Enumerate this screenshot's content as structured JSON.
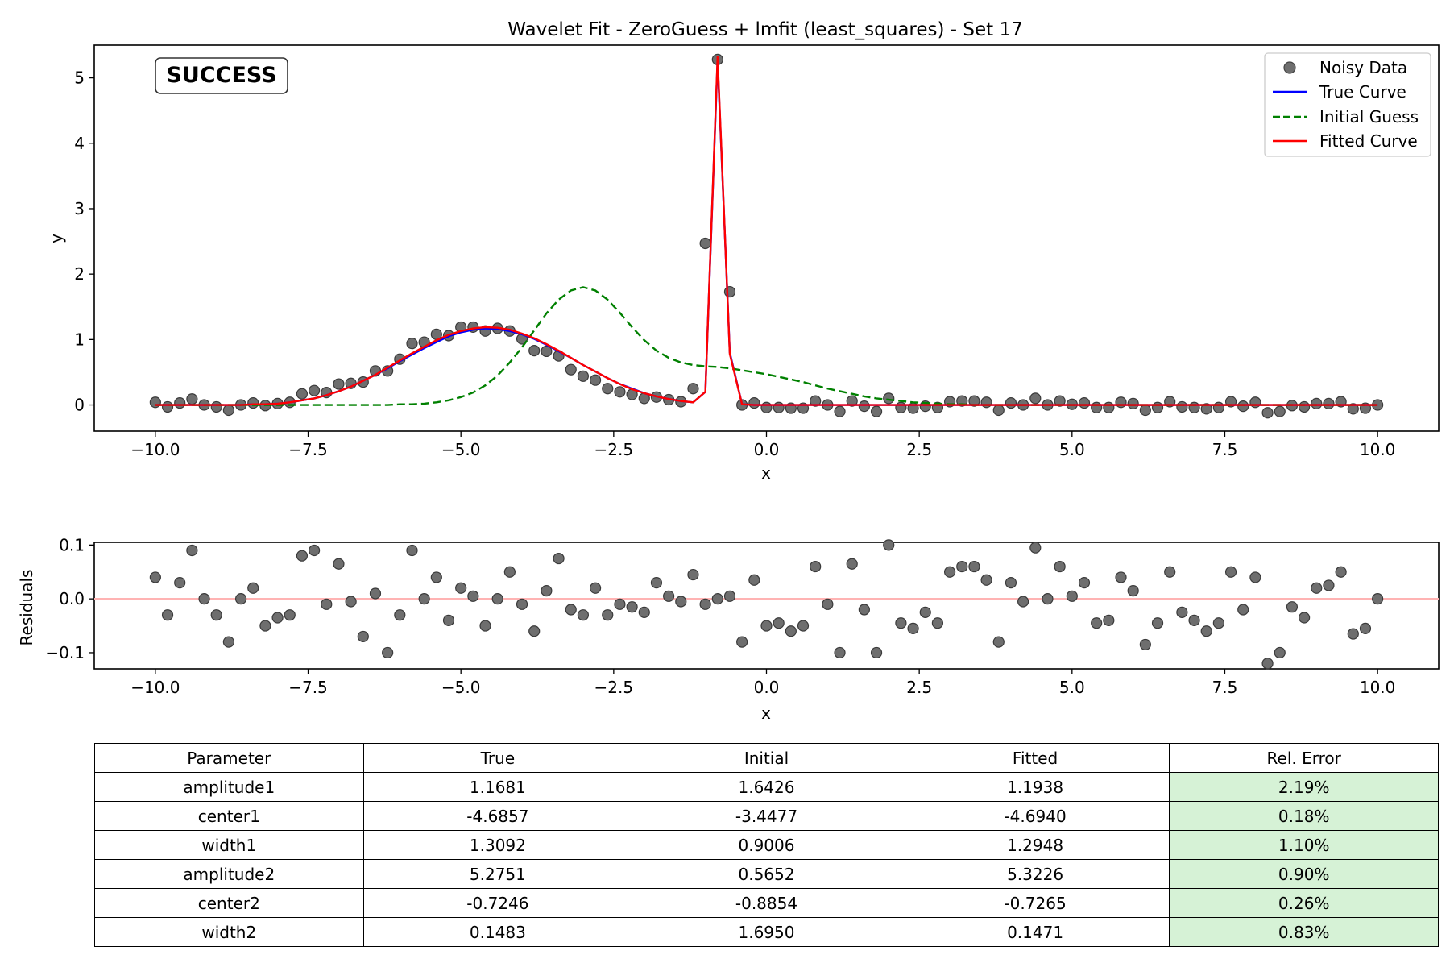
{
  "colors": {
    "data_point": "#6e6e6e",
    "true_curve": "#0000ff",
    "initial_guess": "#008000",
    "fitted_curve": "#ff0000",
    "residual_zero_line": "#ffb3b3",
    "success": "#008000",
    "good_error_cell": "#d6f2d6"
  },
  "status_badge": "SUCCESS",
  "chart_data": [
    {
      "type": "scatter",
      "title": "Wavelet Fit - ZeroGuess + lmfit (least_squares) - Set 17",
      "xlabel": "x",
      "ylabel": "y",
      "xlim": [
        -11,
        11
      ],
      "ylim": [
        -0.4,
        5.5
      ],
      "xticks": [
        -10,
        -7.5,
        -5,
        -2.5,
        0,
        2.5,
        5,
        7.5,
        10
      ],
      "xtick_labels": [
        "−10.0",
        "−7.5",
        "−5.0",
        "−2.5",
        "0.0",
        "2.5",
        "5.0",
        "7.5",
        "10.0"
      ],
      "yticks": [
        0,
        1,
        2,
        3,
        4,
        5
      ],
      "ytick_labels": [
        "0",
        "1",
        "2",
        "3",
        "4",
        "5"
      ],
      "legend_position": "top-right",
      "legend": [
        "Noisy Data",
        "True Curve",
        "Initial Guess",
        "Fitted Curve"
      ],
      "x": [
        -10.0,
        -9.8,
        -9.6,
        -9.4,
        -9.2,
        -9.0,
        -8.8,
        -8.6,
        -8.4,
        -8.2,
        -8.0,
        -7.8,
        -7.6,
        -7.4,
        -7.2,
        -7.0,
        -6.8,
        -6.6,
        -6.4,
        -6.2,
        -6.0,
        -5.8,
        -5.6,
        -5.4,
        -5.2,
        -5.0,
        -4.8,
        -4.6,
        -4.4,
        -4.2,
        -4.0,
        -3.8,
        -3.6,
        -3.4,
        -3.2,
        -3.0,
        -2.8,
        -2.6,
        -2.4,
        -2.2,
        -2.0,
        -1.8,
        -1.6,
        -1.4,
        -1.2,
        -1.0,
        -0.8,
        -0.6,
        -0.4,
        -0.2,
        0.0,
        0.2,
        0.4,
        0.6,
        0.8,
        1.0,
        1.2,
        1.4,
        1.6,
        1.8,
        2.0,
        2.2,
        2.4,
        2.6,
        2.8,
        3.0,
        3.2,
        3.4,
        3.6,
        3.8,
        4.0,
        4.2,
        4.4,
        4.6,
        4.8,
        5.0,
        5.2,
        5.4,
        5.6,
        5.8,
        6.0,
        6.2,
        6.4,
        6.6,
        6.8,
        7.0,
        7.2,
        7.4,
        7.6,
        7.8,
        8.0,
        8.2,
        8.4,
        8.6,
        8.8,
        9.0,
        9.2,
        9.4,
        9.6,
        9.8,
        10.0
      ],
      "series": [
        {
          "name": "Noisy Data",
          "kind": "points",
          "y": [
            0.04,
            -0.03,
            0.03,
            0.09,
            0.0,
            -0.03,
            -0.08,
            0.0,
            0.03,
            -0.01,
            0.02,
            0.04,
            0.17,
            0.22,
            0.19,
            0.32,
            0.33,
            0.35,
            0.52,
            0.52,
            0.7,
            0.94,
            0.96,
            1.08,
            1.06,
            1.19,
            1.19,
            1.13,
            1.17,
            1.13,
            1.01,
            0.83,
            0.82,
            0.75,
            0.54,
            0.44,
            0.38,
            0.25,
            0.2,
            0.16,
            0.1,
            0.12,
            0.08,
            0.05,
            0.25,
            2.47,
            5.28,
            1.73,
            0.0,
            0.03,
            -0.04,
            -0.04,
            -0.05,
            -0.05,
            0.06,
            0.0,
            -0.1,
            0.06,
            -0.02,
            -0.1,
            0.1,
            -0.04,
            -0.05,
            -0.02,
            -0.04,
            0.05,
            0.06,
            0.06,
            0.04,
            -0.08,
            0.03,
            0.0,
            0.1,
            0.0,
            0.06,
            0.01,
            0.03,
            -0.04,
            -0.04,
            0.04,
            0.02,
            -0.08,
            -0.04,
            0.05,
            -0.03,
            -0.04,
            -0.06,
            -0.04,
            0.05,
            -0.02,
            0.04,
            -0.12,
            -0.1,
            -0.01,
            -0.03,
            0.02,
            0.02,
            0.05,
            -0.06,
            -0.05,
            0.0
          ]
        },
        {
          "name": "True Curve",
          "kind": "line",
          "y": [
            0,
            0,
            0,
            0,
            0,
            0,
            0,
            0,
            0.01,
            0.01,
            0.02,
            0.04,
            0.07,
            0.1,
            0.15,
            0.21,
            0.28,
            0.37,
            0.46,
            0.56,
            0.67,
            0.77,
            0.87,
            0.96,
            1.05,
            1.11,
            1.15,
            1.17,
            1.16,
            1.13,
            1.08,
            1.01,
            0.92,
            0.82,
            0.72,
            0.61,
            0.51,
            0.41,
            0.32,
            0.25,
            0.18,
            0.13,
            0.09,
            0.06,
            0.04,
            0.2,
            5.27,
            0.8,
            0.01,
            0,
            0,
            0,
            0,
            0,
            0,
            0,
            0,
            0,
            0,
            0,
            0,
            0,
            0,
            0,
            0,
            0,
            0,
            0,
            0,
            0,
            0,
            0,
            0,
            0,
            0,
            0,
            0,
            0,
            0,
            0,
            0,
            0,
            0,
            0,
            0,
            0,
            0,
            0,
            0,
            0,
            0,
            0,
            0,
            0,
            0,
            0,
            0,
            0,
            0,
            0,
            0
          ]
        },
        {
          "name": "Initial Guess",
          "kind": "dashed-line",
          "y": [
            0,
            0,
            0,
            0,
            0,
            0,
            0,
            0,
            0,
            0,
            0,
            0,
            0,
            0,
            0,
            0,
            0,
            0,
            0,
            0,
            0.01,
            0.01,
            0.02,
            0.04,
            0.07,
            0.12,
            0.19,
            0.3,
            0.45,
            0.65,
            0.88,
            1.14,
            1.4,
            1.61,
            1.75,
            1.8,
            1.75,
            1.61,
            1.41,
            1.19,
            0.99,
            0.83,
            0.72,
            0.65,
            0.61,
            0.59,
            0.58,
            0.56,
            0.53,
            0.5,
            0.47,
            0.43,
            0.39,
            0.35,
            0.3,
            0.25,
            0.21,
            0.17,
            0.13,
            0.1,
            0.08,
            0.06,
            0.04,
            0.03,
            0.02,
            0.01,
            0.01,
            0,
            0,
            0,
            0,
            0,
            0,
            0,
            0,
            0,
            0,
            0,
            0,
            0,
            0,
            0,
            0,
            0,
            0,
            0,
            0,
            0,
            0,
            0,
            0,
            0,
            0,
            0,
            0,
            0,
            0,
            0,
            0,
            0,
            0
          ]
        },
        {
          "name": "Fitted Curve",
          "kind": "line",
          "y": [
            0,
            0,
            0,
            0,
            0,
            0,
            0,
            0,
            0.01,
            0.01,
            0.02,
            0.04,
            0.07,
            0.1,
            0.15,
            0.21,
            0.28,
            0.37,
            0.46,
            0.57,
            0.68,
            0.79,
            0.89,
            0.99,
            1.07,
            1.13,
            1.17,
            1.19,
            1.18,
            1.15,
            1.09,
            1.02,
            0.93,
            0.83,
            0.72,
            0.61,
            0.51,
            0.41,
            0.32,
            0.24,
            0.18,
            0.13,
            0.09,
            0.06,
            0.04,
            0.2,
            5.32,
            0.78,
            0.01,
            0,
            0,
            0,
            0,
            0,
            0,
            0,
            0,
            0,
            0,
            0,
            0,
            0,
            0,
            0,
            0,
            0,
            0,
            0,
            0,
            0,
            0,
            0,
            0,
            0,
            0,
            0,
            0,
            0,
            0,
            0,
            0,
            0,
            0,
            0,
            0,
            0,
            0,
            0,
            0,
            0,
            0,
            0,
            0,
            0,
            0,
            0,
            0,
            0,
            0,
            0,
            0
          ]
        }
      ]
    },
    {
      "type": "scatter",
      "xlabel": "x",
      "ylabel": "Residuals",
      "xlim": [
        -11,
        11
      ],
      "ylim": [
        -0.13,
        0.105
      ],
      "xticks": [
        -10,
        -7.5,
        -5,
        -2.5,
        0,
        2.5,
        5,
        7.5,
        10
      ],
      "xtick_labels": [
        "−10.0",
        "−7.5",
        "−5.0",
        "−2.5",
        "0.0",
        "2.5",
        "5.0",
        "7.5",
        "10.0"
      ],
      "yticks": [
        0.1,
        0.0,
        -0.1
      ],
      "ytick_labels": [
        "0.1",
        "0.0",
        "−0.1"
      ],
      "reference_line_y": 0,
      "x": [
        -10.0,
        -9.8,
        -9.6,
        -9.4,
        -9.2,
        -9.0,
        -8.8,
        -8.6,
        -8.4,
        -8.2,
        -8.0,
        -7.8,
        -7.6,
        -7.4,
        -7.2,
        -7.0,
        -6.8,
        -6.6,
        -6.4,
        -6.2,
        -6.0,
        -5.8,
        -5.6,
        -5.4,
        -5.2,
        -5.0,
        -4.8,
        -4.6,
        -4.4,
        -4.2,
        -4.0,
        -3.8,
        -3.6,
        -3.4,
        -3.2,
        -3.0,
        -2.8,
        -2.6,
        -2.4,
        -2.2,
        -2.0,
        -1.8,
        -1.6,
        -1.4,
        -1.2,
        -1.0,
        -0.8,
        -0.6,
        -0.4,
        -0.2,
        0.0,
        0.2,
        0.4,
        0.6,
        0.8,
        1.0,
        1.2,
        1.4,
        1.6,
        1.8,
        2.0,
        2.2,
        2.4,
        2.6,
        2.8,
        3.0,
        3.2,
        3.4,
        3.6,
        3.8,
        4.0,
        4.2,
        4.4,
        4.6,
        4.8,
        5.0,
        5.2,
        5.4,
        5.6,
        5.8,
        6.0,
        6.2,
        6.4,
        6.6,
        6.8,
        7.0,
        7.2,
        7.4,
        7.6,
        7.8,
        8.0,
        8.2,
        8.4,
        8.6,
        8.8,
        9.0,
        9.2,
        9.4,
        9.6,
        9.8,
        10.0
      ],
      "values": [
        0.04,
        -0.03,
        0.03,
        0.09,
        0.0,
        -0.03,
        -0.08,
        0.0,
        0.02,
        -0.05,
        -0.035,
        -0.03,
        0.08,
        0.09,
        -0.01,
        0.065,
        -0.005,
        -0.07,
        0.01,
        -0.1,
        -0.03,
        0.09,
        0.0,
        0.04,
        -0.04,
        0.02,
        0.005,
        -0.05,
        0.0,
        0.05,
        -0.01,
        -0.06,
        0.015,
        0.075,
        -0.02,
        -0.03,
        0.02,
        -0.03,
        -0.01,
        -0.015,
        -0.025,
        0.03,
        0.005,
        -0.005,
        0.045,
        -0.01,
        0.0,
        0.005,
        -0.08,
        0.035,
        -0.05,
        -0.045,
        -0.06,
        -0.05,
        0.06,
        -0.01,
        -0.1,
        0.065,
        -0.02,
        -0.1,
        0.1,
        -0.045,
        -0.055,
        -0.025,
        -0.045,
        0.05,
        0.06,
        0.06,
        0.035,
        -0.08,
        0.03,
        -0.005,
        0.095,
        0.0,
        0.06,
        0.005,
        0.03,
        -0.045,
        -0.04,
        0.04,
        0.015,
        -0.085,
        -0.045,
        0.05,
        -0.025,
        -0.04,
        -0.06,
        -0.045,
        0.05,
        -0.02,
        0.04,
        -0.12,
        -0.1,
        -0.015,
        -0.035,
        0.02,
        0.025,
        0.05,
        -0.065,
        -0.055,
        0.0
      ]
    },
    {
      "type": "table",
      "columns": [
        "Parameter",
        "True",
        "Initial",
        "Fitted",
        "Rel. Error"
      ],
      "rows": [
        [
          "amplitude1",
          "1.1681",
          "1.6426",
          "1.1938",
          "2.19%"
        ],
        [
          "center1",
          "-4.6857",
          "-3.4477",
          "-4.6940",
          "0.18%"
        ],
        [
          "width1",
          "1.3092",
          "0.9006",
          "1.2948",
          "1.10%"
        ],
        [
          "amplitude2",
          "5.2751",
          "0.5652",
          "5.3226",
          "0.90%"
        ],
        [
          "center2",
          "-0.7246",
          "-0.8854",
          "-0.7265",
          "0.26%"
        ],
        [
          "width2",
          "0.1483",
          "1.6950",
          "0.1471",
          "0.83%"
        ]
      ]
    }
  ]
}
